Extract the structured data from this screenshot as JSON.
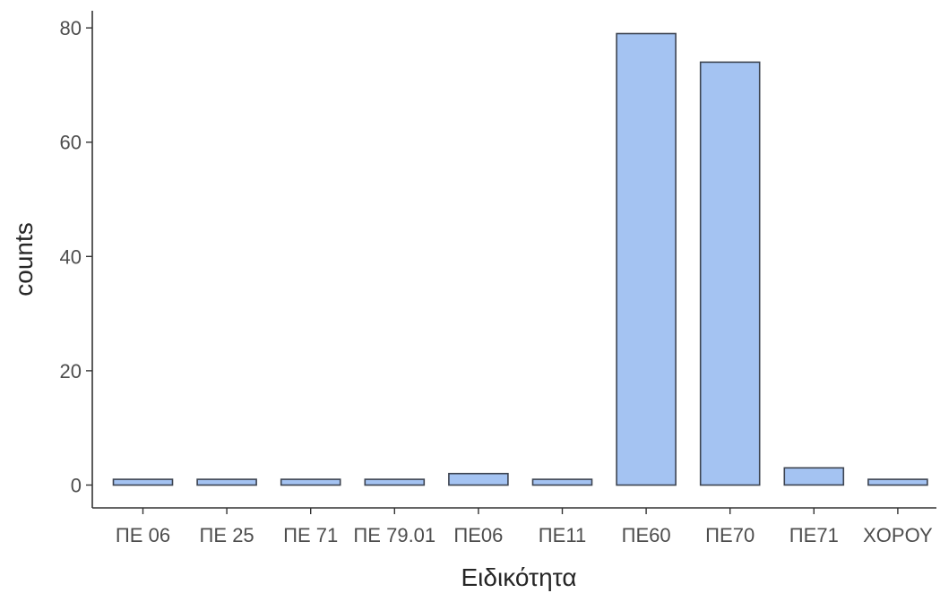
{
  "chart_data": {
    "type": "bar",
    "title": "",
    "xlabel": "Ειδικότητα",
    "ylabel": "counts",
    "categories": [
      "ΠΕ 06",
      "ΠΕ 25",
      "ΠΕ 71",
      "ΠΕ 79.01",
      "ΠΕ06",
      "ΠΕ11",
      "ΠΕ60",
      "ΠΕ70",
      "ΠΕ71",
      "ΧΟΡΟΥ"
    ],
    "values": [
      1,
      1,
      1,
      1,
      2,
      1,
      79,
      74,
      3,
      1
    ],
    "ylim": [
      -4.0,
      83.0
    ],
    "yticks": [
      0,
      20,
      40,
      60,
      80
    ],
    "grid": false,
    "bar_fill": "#a4c3f2",
    "bar_stroke": "#3d4451",
    "axis_color": "#333333"
  }
}
